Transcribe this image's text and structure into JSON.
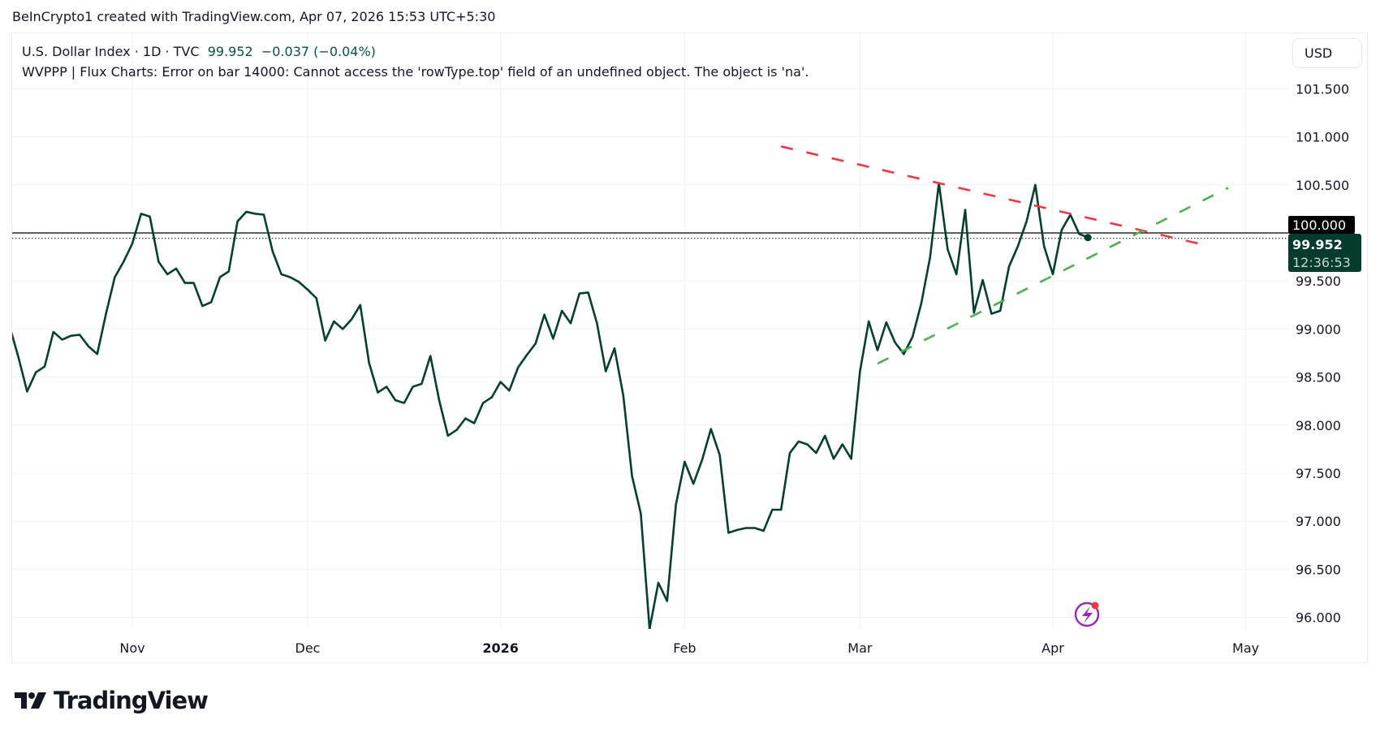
{
  "credit": "BeInCrypto1 created with TradingView.com, Apr 07, 2026 15:53 UTC+5:30",
  "legend": {
    "symbol": "U.S. Dollar Index · 1D · TVC",
    "last": "99.952",
    "change": "−0.037 (−0.04%)",
    "indicator_error": "WVPPP | Flux Charts: Error on bar 14000: Cannot access the 'rowType.top' field of an undefined object. The object is 'na'."
  },
  "currency_button": "USD",
  "brand": "TradingView",
  "icons": {
    "alert": "lightning-alert-icon",
    "logo": "tradingview-logo-icon"
  },
  "colors": {
    "line": "#063f2f",
    "resistance": "#f23645",
    "support": "#4caf50",
    "price_label": "#053b2c",
    "level_label": "#000000",
    "alert_icon": "#9c27b0"
  },
  "chart_data": {
    "type": "line",
    "title": "",
    "xlabel": "",
    "ylabel": "",
    "ylim": [
      95.8,
      101.7
    ],
    "grid": true,
    "y_ticks": [
      "96.000",
      "96.500",
      "97.000",
      "97.500",
      "98.000",
      "98.500",
      "99.000",
      "99.500",
      "100.000",
      "100.500",
      "101.000",
      "101.500"
    ],
    "x_ticks": [
      {
        "label": "Nov",
        "date": "2025-11-03"
      },
      {
        "label": "Dec",
        "date": "2025-12-01"
      },
      {
        "label": "2026",
        "date": "2026-01-02"
      },
      {
        "label": "Feb",
        "date": "2026-02-02"
      },
      {
        "label": "Mar",
        "date": "2026-03-02"
      },
      {
        "label": "Apr",
        "date": "2026-04-01"
      },
      {
        "label": "May",
        "date": "2026-05-01"
      }
    ],
    "series": [
      {
        "points": [
          [
            "2025-10-14",
            99.03
          ],
          [
            "2025-10-15",
            98.71
          ],
          [
            "2025-10-16",
            98.35
          ],
          [
            "2025-10-17",
            98.55
          ],
          [
            "2025-10-20",
            98.61
          ],
          [
            "2025-10-21",
            98.97
          ],
          [
            "2025-10-22",
            98.89
          ],
          [
            "2025-10-23",
            98.93
          ],
          [
            "2025-10-24",
            98.94
          ],
          [
            "2025-10-27",
            98.82
          ],
          [
            "2025-10-28",
            98.74
          ],
          [
            "2025-10-29",
            99.16
          ],
          [
            "2025-10-30",
            99.54
          ],
          [
            "2025-10-31",
            99.7
          ],
          [
            "2025-11-03",
            99.89
          ],
          [
            "2025-11-04",
            100.2
          ],
          [
            "2025-11-05",
            100.17
          ],
          [
            "2025-11-06",
            99.7
          ],
          [
            "2025-11-07",
            99.57
          ],
          [
            "2025-11-10",
            99.63
          ],
          [
            "2025-11-11",
            99.48
          ],
          [
            "2025-11-12",
            99.48
          ],
          [
            "2025-11-13",
            99.24
          ],
          [
            "2025-11-14",
            99.28
          ],
          [
            "2025-11-17",
            99.54
          ],
          [
            "2025-11-18",
            99.6
          ],
          [
            "2025-11-19",
            100.12
          ],
          [
            "2025-11-20",
            100.22
          ],
          [
            "2025-11-21",
            100.2
          ],
          [
            "2025-11-24",
            100.19
          ],
          [
            "2025-11-25",
            99.81
          ],
          [
            "2025-11-26",
            99.57
          ],
          [
            "2025-11-27",
            99.54
          ],
          [
            "2025-11-28",
            99.49
          ],
          [
            "2025-12-01",
            99.41
          ],
          [
            "2025-12-02",
            99.32
          ],
          [
            "2025-12-03",
            98.88
          ],
          [
            "2025-12-04",
            99.08
          ],
          [
            "2025-12-05",
            99.0
          ],
          [
            "2025-12-08",
            99.1
          ],
          [
            "2025-12-09",
            99.25
          ],
          [
            "2025-12-10",
            98.65
          ],
          [
            "2025-12-11",
            98.34
          ],
          [
            "2025-12-12",
            98.4
          ],
          [
            "2025-12-15",
            98.26
          ],
          [
            "2025-12-16",
            98.23
          ],
          [
            "2025-12-17",
            98.4
          ],
          [
            "2025-12-18",
            98.43
          ],
          [
            "2025-12-19",
            98.72
          ],
          [
            "2025-12-22",
            98.26
          ],
          [
            "2025-12-23",
            97.89
          ],
          [
            "2025-12-24",
            97.95
          ],
          [
            "2025-12-26",
            98.07
          ],
          [
            "2025-12-29",
            98.02
          ],
          [
            "2025-12-30",
            98.23
          ],
          [
            "2025-12-31",
            98.29
          ],
          [
            "2026-01-02",
            98.45
          ],
          [
            "2026-01-05",
            98.36
          ],
          [
            "2026-01-06",
            98.6
          ],
          [
            "2026-01-07",
            98.73
          ],
          [
            "2026-01-08",
            98.85
          ],
          [
            "2026-01-09",
            99.15
          ],
          [
            "2026-01-12",
            98.9
          ],
          [
            "2026-01-13",
            99.19
          ],
          [
            "2026-01-14",
            99.06
          ],
          [
            "2026-01-15",
            99.37
          ],
          [
            "2026-01-16",
            99.38
          ],
          [
            "2026-01-19",
            99.06
          ],
          [
            "2026-01-20",
            98.56
          ],
          [
            "2026-01-21",
            98.8
          ],
          [
            "2026-01-22",
            98.31
          ],
          [
            "2026-01-23",
            97.47
          ],
          [
            "2026-01-26",
            97.08
          ],
          [
            "2026-01-27",
            95.88
          ],
          [
            "2026-01-28",
            96.36
          ],
          [
            "2026-01-29",
            96.17
          ],
          [
            "2026-01-30",
            97.17
          ],
          [
            "2026-02-02",
            97.62
          ],
          [
            "2026-02-03",
            97.39
          ],
          [
            "2026-02-04",
            97.64
          ],
          [
            "2026-02-05",
            97.96
          ],
          [
            "2026-02-06",
            97.69
          ],
          [
            "2026-02-09",
            96.88
          ],
          [
            "2026-02-10",
            96.91
          ],
          [
            "2026-02-11",
            96.93
          ],
          [
            "2026-02-12",
            96.93
          ],
          [
            "2026-02-13",
            96.9
          ],
          [
            "2026-02-16",
            97.12
          ],
          [
            "2026-02-17",
            97.12
          ],
          [
            "2026-02-18",
            97.71
          ],
          [
            "2026-02-19",
            97.83
          ],
          [
            "2026-02-20",
            97.8
          ],
          [
            "2026-02-23",
            97.71
          ],
          [
            "2026-02-24",
            97.89
          ],
          [
            "2026-02-25",
            97.65
          ],
          [
            "2026-02-26",
            97.8
          ],
          [
            "2026-02-27",
            97.65
          ],
          [
            "2026-03-02",
            98.56
          ],
          [
            "2026-03-03",
            99.08
          ],
          [
            "2026-03-04",
            98.78
          ],
          [
            "2026-03-05",
            99.07
          ],
          [
            "2026-03-06",
            98.86
          ],
          [
            "2026-03-09",
            98.74
          ],
          [
            "2026-03-10",
            98.92
          ],
          [
            "2026-03-11",
            99.27
          ],
          [
            "2026-03-12",
            99.75
          ],
          [
            "2026-03-13",
            100.52
          ],
          [
            "2026-03-16",
            99.83
          ],
          [
            "2026-03-17",
            99.57
          ],
          [
            "2026-03-18",
            100.24
          ],
          [
            "2026-03-19",
            99.17
          ],
          [
            "2026-03-20",
            99.51
          ],
          [
            "2026-03-23",
            99.16
          ],
          [
            "2026-03-24",
            99.19
          ],
          [
            "2026-03-25",
            99.65
          ],
          [
            "2026-03-26",
            99.86
          ],
          [
            "2026-03-27",
            100.12
          ],
          [
            "2026-03-30",
            100.5
          ],
          [
            "2026-03-31",
            99.86
          ],
          [
            "2026-04-01",
            99.57
          ],
          [
            "2026-04-02",
            100.03
          ],
          [
            "2026-04-03",
            100.19
          ],
          [
            "2026-04-06",
            99.99
          ],
          [
            "2026-04-07",
            99.952
          ]
        ]
      }
    ],
    "trendlines": [
      {
        "kind": "resistance",
        "style": "dashed",
        "from": [
          "2026-02-17",
          100.9
        ],
        "to": [
          "2026-04-27",
          99.86
        ]
      },
      {
        "kind": "support",
        "style": "dashed",
        "from": [
          "2026-03-04",
          98.64
        ],
        "to": [
          "2026-04-29",
          100.47
        ]
      }
    ],
    "horizontal_line": {
      "value": 100.0,
      "label": "100.000"
    },
    "current_price": {
      "value": 99.952,
      "label": "99.952",
      "countdown": "12:36:53"
    }
  }
}
